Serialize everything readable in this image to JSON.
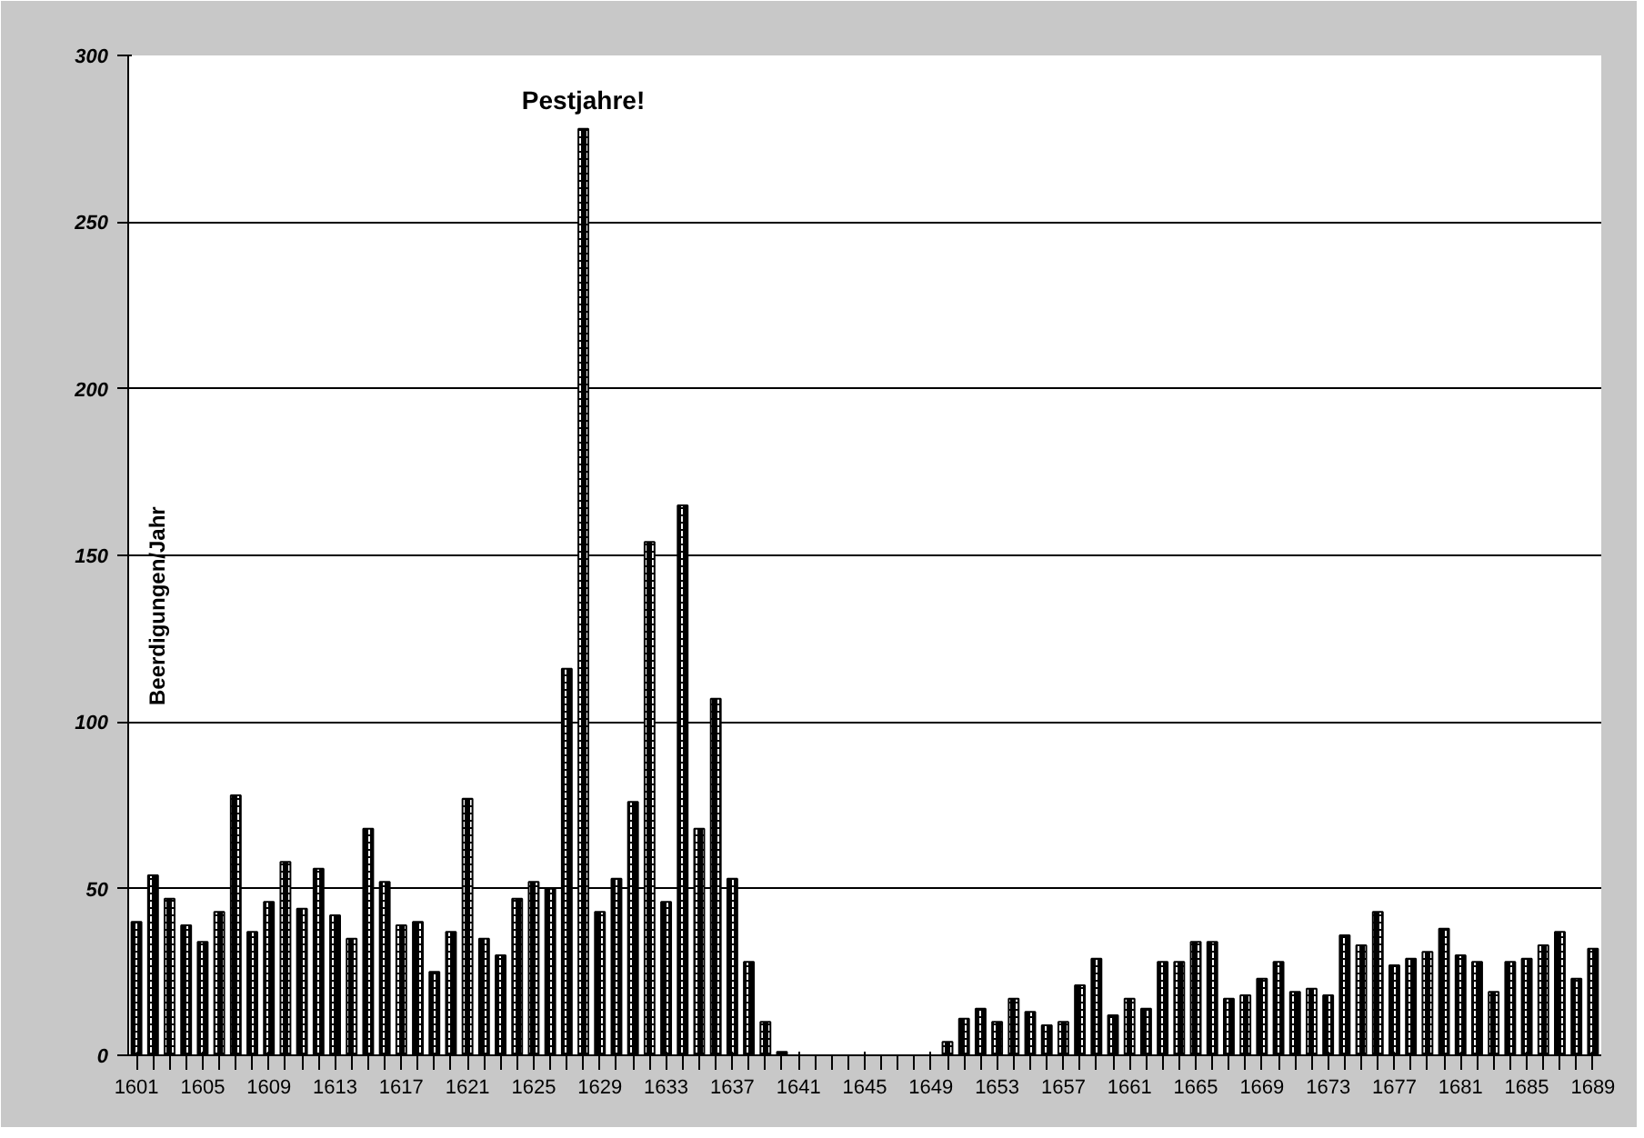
{
  "chart_data": {
    "type": "bar",
    "ylabel": "Beerdigungen/Jahr",
    "annotations": [
      {
        "text": "Pestjahre!",
        "x": 1628,
        "y": 278
      }
    ],
    "x": [
      1601,
      1602,
      1603,
      1604,
      1605,
      1606,
      1607,
      1608,
      1609,
      1610,
      1611,
      1612,
      1613,
      1614,
      1615,
      1616,
      1617,
      1618,
      1619,
      1620,
      1621,
      1622,
      1623,
      1624,
      1625,
      1626,
      1627,
      1628,
      1629,
      1630,
      1631,
      1632,
      1633,
      1634,
      1635,
      1636,
      1637,
      1638,
      1639,
      1640,
      1641,
      1642,
      1643,
      1644,
      1645,
      1646,
      1647,
      1648,
      1649,
      1650,
      1651,
      1652,
      1653,
      1654,
      1655,
      1656,
      1657,
      1658,
      1659,
      1660,
      1661,
      1662,
      1663,
      1664,
      1665,
      1666,
      1667,
      1668,
      1669,
      1670,
      1671,
      1672,
      1673,
      1674,
      1675,
      1676,
      1677,
      1678,
      1679,
      1680,
      1681,
      1682,
      1683,
      1684,
      1685,
      1686,
      1687,
      1688,
      1689
    ],
    "values": [
      40,
      54,
      47,
      39,
      34,
      43,
      78,
      37,
      46,
      58,
      44,
      56,
      42,
      35,
      68,
      52,
      39,
      40,
      25,
      37,
      77,
      35,
      30,
      47,
      52,
      50,
      116,
      278,
      43,
      53,
      76,
      154,
      46,
      165,
      68,
      107,
      53,
      28,
      10,
      1,
      0,
      0,
      0,
      0,
      0,
      0,
      0,
      0,
      0,
      4,
      11,
      14,
      10,
      17,
      13,
      9,
      10,
      21,
      29,
      12,
      17,
      14,
      28,
      28,
      34,
      34,
      17,
      18,
      23,
      28,
      19,
      20,
      18,
      36,
      33,
      43,
      27,
      29,
      31,
      38,
      30,
      28,
      19,
      28,
      29,
      33,
      37,
      23,
      32
    ],
    "color": "#000000",
    "xlim": [
      1600.5,
      1689.5
    ],
    "xticks": [
      1601,
      1605,
      1609,
      1613,
      1617,
      1621,
      1625,
      1629,
      1633,
      1637,
      1641,
      1645,
      1649,
      1653,
      1657,
      1661,
      1665,
      1669,
      1673,
      1677,
      1681,
      1685,
      1689
    ],
    "ylim": [
      0,
      300
    ],
    "yticks": [
      0,
      50,
      100,
      150,
      200,
      250,
      300
    ],
    "grid": "y"
  }
}
